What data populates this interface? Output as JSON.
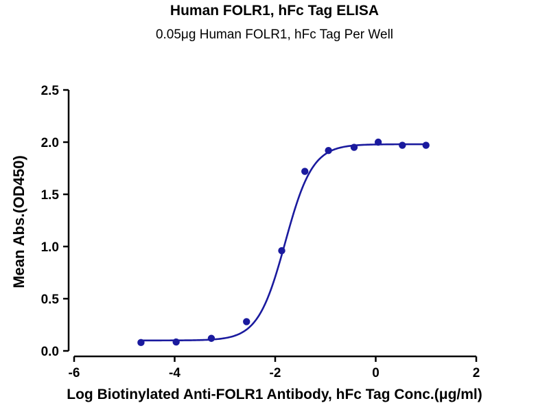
{
  "chart_data": {
    "type": "scatter",
    "title": "Human FOLR1, hFc Tag ELISA",
    "subtitle": "0.05μg Human FOLR1, hFc Tag Per Well",
    "xlabel": "Log Biotinylated Anti-FOLR1 Antibody, hFc Tag Conc.(μg/ml)",
    "ylabel": "Mean Abs.(OD450)",
    "xlim": [
      -6,
      2
    ],
    "ylim": [
      0,
      2.5
    ],
    "xticks": [
      "-6",
      "-4",
      "-2",
      "0",
      "2"
    ],
    "yticks": [
      "0.0",
      "0.5",
      "1.0",
      "1.5",
      "2.0",
      "2.5"
    ],
    "series": [
      {
        "x": [
          -4.67,
          -3.97,
          -3.27,
          -2.57,
          -1.87,
          -1.41,
          -0.94,
          -0.43,
          0.05,
          0.53,
          1.0
        ],
        "values": [
          0.08,
          0.085,
          0.12,
          0.28,
          0.96,
          1.72,
          1.92,
          1.95,
          2.0,
          1.97,
          1.97
        ],
        "color": "#1a1a9e"
      }
    ],
    "fit_curve": {
      "model": "4PL",
      "bottom": 0.1,
      "top": 1.98,
      "log_ec50": -1.8,
      "hill": 1.6,
      "x_range": [
        -4.67,
        1.0
      ],
      "color": "#1a1a9e"
    },
    "grid": false,
    "legend": "none"
  }
}
